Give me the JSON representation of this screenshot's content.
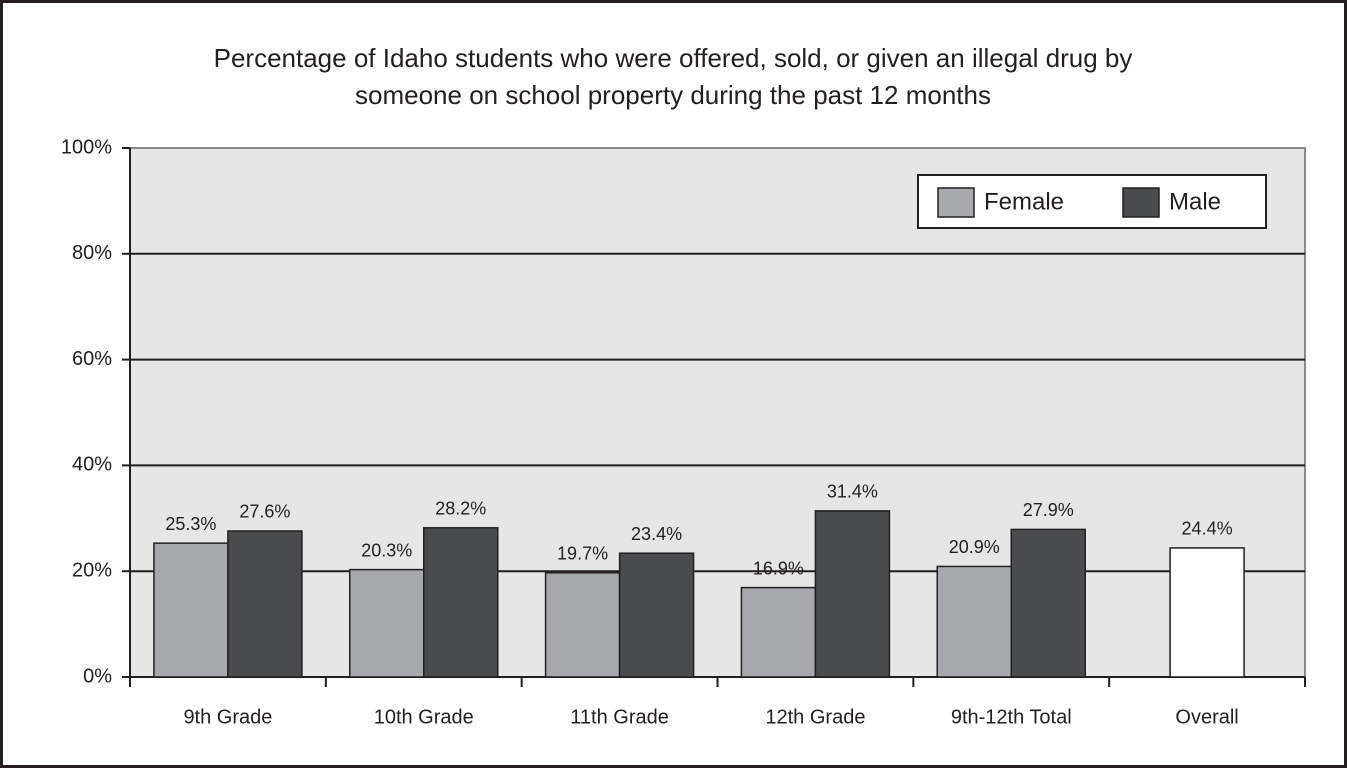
{
  "chart_data": {
    "type": "bar",
    "title": [
      "Percentage of Idaho students who were offered, sold, or given an illegal drug by",
      "someone on school property during the past 12 months"
    ],
    "categories": [
      "9th Grade",
      "10th Grade",
      "11th Grade",
      "12th Grade",
      "9th-12th Total",
      "Overall"
    ],
    "series": [
      {
        "name": "Female",
        "color": "#a7a8ab",
        "values": [
          25.3,
          20.3,
          19.7,
          16.9,
          20.9,
          null
        ],
        "value_labels": [
          "25.3%",
          "20.3%",
          "19.7%",
          "16.9%",
          "20.9%",
          null
        ]
      },
      {
        "name": "Male",
        "color": "#4a4b4d",
        "values": [
          27.6,
          28.2,
          23.4,
          31.4,
          27.9,
          null
        ],
        "value_labels": [
          "27.6%",
          "28.2%",
          "23.4%",
          "31.4%",
          "27.9%",
          null
        ]
      },
      {
        "color": "#ffffff",
        "values": [
          null,
          null,
          null,
          null,
          null,
          24.4
        ],
        "value_labels": [
          null,
          null,
          null,
          null,
          null,
          "24.4%"
        ]
      }
    ],
    "ylim": [
      0,
      100
    ],
    "yticks": [
      {
        "value": 0,
        "label": "0%"
      },
      {
        "value": 20,
        "label": "20%"
      },
      {
        "value": 40,
        "label": "40%"
      },
      {
        "value": 60,
        "label": "60%"
      },
      {
        "value": 80,
        "label": "80%"
      },
      {
        "value": 100,
        "label": "100%"
      }
    ],
    "grid": true,
    "legend": "top-right"
  }
}
